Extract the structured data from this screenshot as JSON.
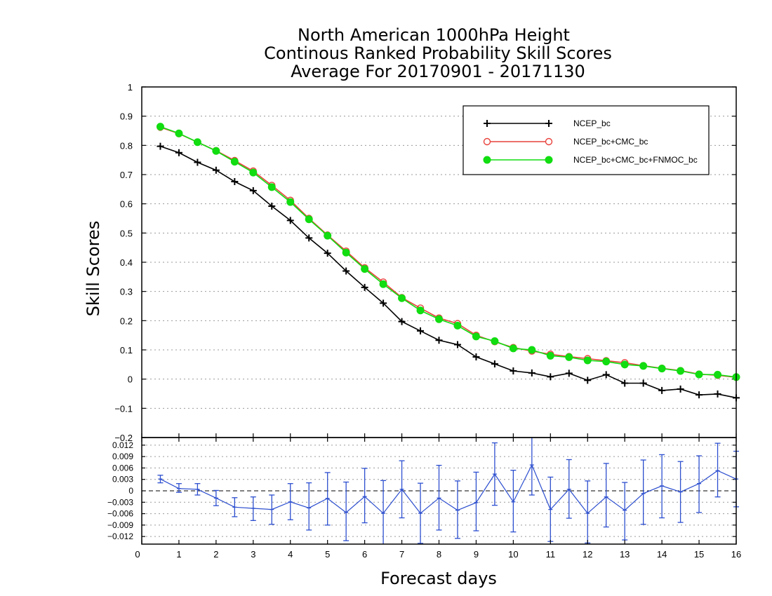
{
  "chart_data": [
    {
      "type": "line",
      "title": [
        "North American 1000hPa Height",
        "Continous Ranked Probability Skill Scores",
        "Average For 20170901 - 20171130"
      ],
      "ylabel": "Skill Scores",
      "xlabel": "",
      "xlim": [
        0,
        16
      ],
      "ylim": [
        -0.2,
        1
      ],
      "yticks": [
        "1",
        "0.9",
        "0.8",
        "0.7",
        "0.6",
        "0.5",
        "0.4",
        "0.3",
        "0.2",
        "0.1",
        "0",
        "−0.1",
        "−0.2"
      ],
      "yticks_values": [
        1,
        0.9,
        0.8,
        0.7,
        0.6,
        0.5,
        0.4,
        0.3,
        0.2,
        0.1,
        0,
        -0.1,
        -0.2
      ],
      "grid": true,
      "legend_position": "top-right",
      "x": [
        0.5,
        1,
        1.5,
        2,
        2.5,
        3,
        3.5,
        4,
        4.5,
        5,
        5.5,
        6,
        6.5,
        7,
        7.5,
        8,
        8.5,
        9,
        9.5,
        10,
        10.5,
        11,
        11.5,
        12,
        12.5,
        13,
        13.5,
        14,
        14.5,
        15,
        15.5,
        16
      ],
      "series": [
        {
          "name": "NCEP_bc",
          "color": "#000000",
          "marker": "plus",
          "values": [
            0.797,
            0.775,
            0.742,
            0.715,
            0.676,
            0.645,
            0.592,
            0.543,
            0.483,
            0.431,
            0.37,
            0.314,
            0.26,
            0.197,
            0.165,
            0.133,
            0.118,
            0.076,
            0.052,
            0.028,
            0.021,
            0.008,
            0.02,
            -0.004,
            0.015,
            -0.014,
            -0.014,
            -0.039,
            -0.034,
            -0.054,
            -0.051,
            -0.064
          ]
        },
        {
          "name": "NCEP_bc+CMC_bc",
          "color": "#e8423c",
          "marker": "open-circle",
          "values": [
            0.862,
            0.84,
            0.811,
            0.782,
            0.748,
            0.712,
            0.663,
            0.612,
            0.55,
            0.493,
            0.438,
            0.381,
            0.332,
            0.279,
            0.243,
            0.209,
            0.19,
            0.15,
            0.128,
            0.108,
            0.096,
            0.085,
            0.077,
            0.07,
            0.063,
            0.056,
            0.046,
            0.037,
            0.029,
            0.017,
            0.013,
            0.006
          ]
        },
        {
          "name": "NCEP_bc+CMC_bc+FNMOC_bc",
          "color": "#11dd11",
          "marker": "filled-circle",
          "values": [
            0.864,
            0.841,
            0.811,
            0.781,
            0.744,
            0.707,
            0.657,
            0.606,
            0.547,
            0.491,
            0.433,
            0.377,
            0.325,
            0.277,
            0.235,
            0.205,
            0.183,
            0.146,
            0.13,
            0.105,
            0.1,
            0.08,
            0.075,
            0.064,
            0.06,
            0.05,
            0.045,
            0.036,
            0.028,
            0.016,
            0.015,
            0.007
          ]
        }
      ]
    },
    {
      "type": "line",
      "title": "",
      "xlabel": "Forecast days",
      "ylabel": "",
      "xlim": [
        0,
        16
      ],
      "ylim": [
        -0.014,
        0.014
      ],
      "xticks": [
        "0",
        "1",
        "2",
        "3",
        "4",
        "5",
        "6",
        "7",
        "8",
        "9",
        "10",
        "11",
        "12",
        "13",
        "14",
        "15",
        "16"
      ],
      "yticks": [
        "0.012",
        "0.009",
        "0.006",
        "0.003",
        "0",
        "−0.003",
        "−0.006",
        "−0.009",
        "−0.012"
      ],
      "yticks_values": [
        0.012,
        0.009,
        0.006,
        0.003,
        0,
        -0.003,
        -0.006,
        -0.009,
        -0.012
      ],
      "grid": true,
      "reference_line": 0,
      "x": [
        0.5,
        1,
        1.5,
        2,
        2.5,
        3,
        3.5,
        4,
        4.5,
        5,
        5.5,
        6,
        6.5,
        7,
        7.5,
        8,
        8.5,
        9,
        9.5,
        10,
        10.5,
        11,
        11.5,
        12,
        12.5,
        13,
        13.5,
        14,
        14.5,
        15,
        15.5,
        16
      ],
      "series": [
        {
          "name": "",
          "color": "#2d4fcf",
          "marker": "errorbar",
          "values": [
            0.0031,
            0.0006,
            0.0004,
            -0.0019,
            -0.0043,
            -0.0046,
            -0.0049,
            -0.0029,
            -0.0045,
            -0.002,
            -0.0057,
            -0.0015,
            -0.0059,
            0.0004,
            -0.0059,
            -0.0019,
            -0.0051,
            -0.0031,
            0.0044,
            -0.0029,
            0.0068,
            -0.0049,
            0.0004,
            -0.0059,
            -0.0016,
            -0.0051,
            -0.0007,
            0.0013,
            -0.0003,
            0.0019,
            0.0053,
            0.0031
          ],
          "lower": [
            0.0021,
            -0.0004,
            -0.0011,
            -0.0039,
            -0.0068,
            -0.0078,
            -0.0088,
            -0.0076,
            -0.0103,
            -0.009,
            -0.0131,
            -0.0084,
            -0.0143,
            -0.0071,
            -0.0138,
            -0.0103,
            -0.0125,
            -0.0105,
            -0.0038,
            -0.0108,
            -0.0011,
            -0.0133,
            -0.0072,
            -0.0137,
            -0.0095,
            -0.0129,
            -0.0088,
            -0.0071,
            -0.0083,
            -0.0057,
            -0.0016,
            -0.0042
          ],
          "upper": [
            0.0041,
            0.0019,
            0.0019,
            0.0001,
            -0.0018,
            -0.0016,
            -0.0011,
            0.0019,
            0.0021,
            0.0048,
            0.0023,
            0.0059,
            0.0027,
            0.0079,
            0.002,
            0.0067,
            0.0026,
            0.0049,
            0.0126,
            0.0054,
            0.0148,
            0.0036,
            0.0082,
            0.0026,
            0.0072,
            0.0022,
            0.0081,
            0.0095,
            0.0077,
            0.0092,
            0.0125,
            0.0104
          ]
        }
      ]
    }
  ]
}
